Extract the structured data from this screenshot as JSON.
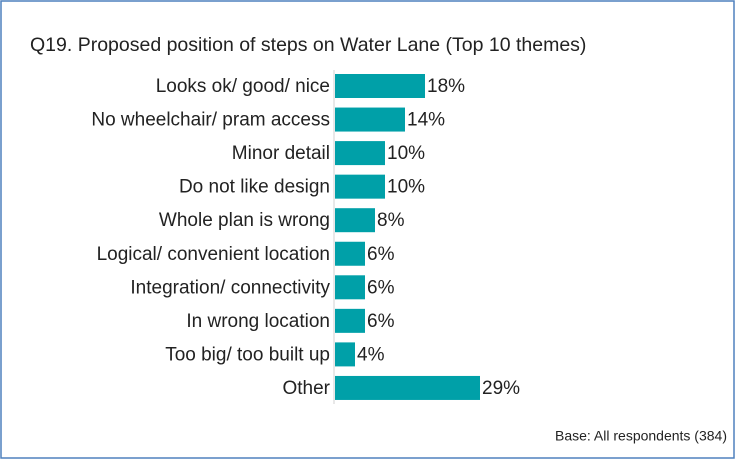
{
  "chart_data": {
    "type": "bar",
    "orientation": "horizontal",
    "title": "Q19. Proposed position of steps on Water Lane  (Top 10 themes)",
    "categories": [
      "Looks ok/ good/ nice",
      "No wheelchair/ pram access",
      "Minor detail",
      "Do not like design",
      "Whole plan is wrong",
      "Logical/ convenient location",
      "Integration/ connectivity",
      "In wrong location",
      "Too big/ too built up",
      "Other"
    ],
    "values": [
      18,
      14,
      10,
      10,
      8,
      6,
      6,
      6,
      4,
      29
    ],
    "value_labels": [
      "18%",
      "14%",
      "10%",
      "10%",
      "8%",
      "6%",
      "6%",
      "6%",
      "4%",
      "29%"
    ],
    "color": "#00a0a8",
    "note": "Base: All respondents (384)"
  }
}
